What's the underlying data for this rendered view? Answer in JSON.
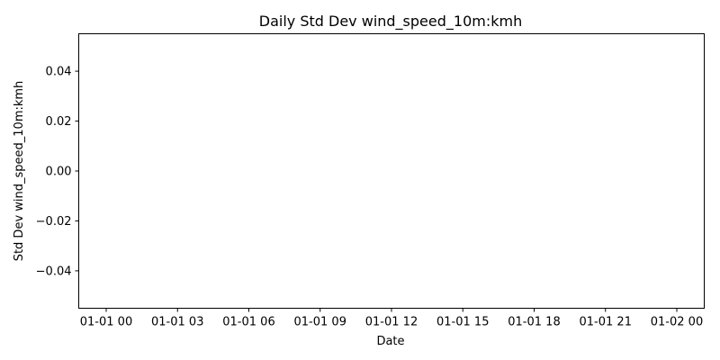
{
  "chart_data": {
    "type": "line",
    "title": "Daily Std Dev wind_speed_10m:kmh",
    "xlabel": "Date",
    "ylabel": "Std Dev wind_speed_10m:kmh",
    "x_ticks": [
      "01-01 00",
      "01-01 03",
      "01-01 06",
      "01-01 09",
      "01-01 12",
      "01-01 15",
      "01-01 18",
      "01-01 21",
      "01-02 00"
    ],
    "y_ticks": [
      "0.04",
      "0.02",
      "0.00",
      "−0.02",
      "−0.04"
    ],
    "y_tick_values": [
      0.04,
      0.02,
      0.0,
      -0.02,
      -0.04
    ],
    "ylim": [
      -0.055,
      0.055
    ],
    "series": [],
    "grid": false
  }
}
